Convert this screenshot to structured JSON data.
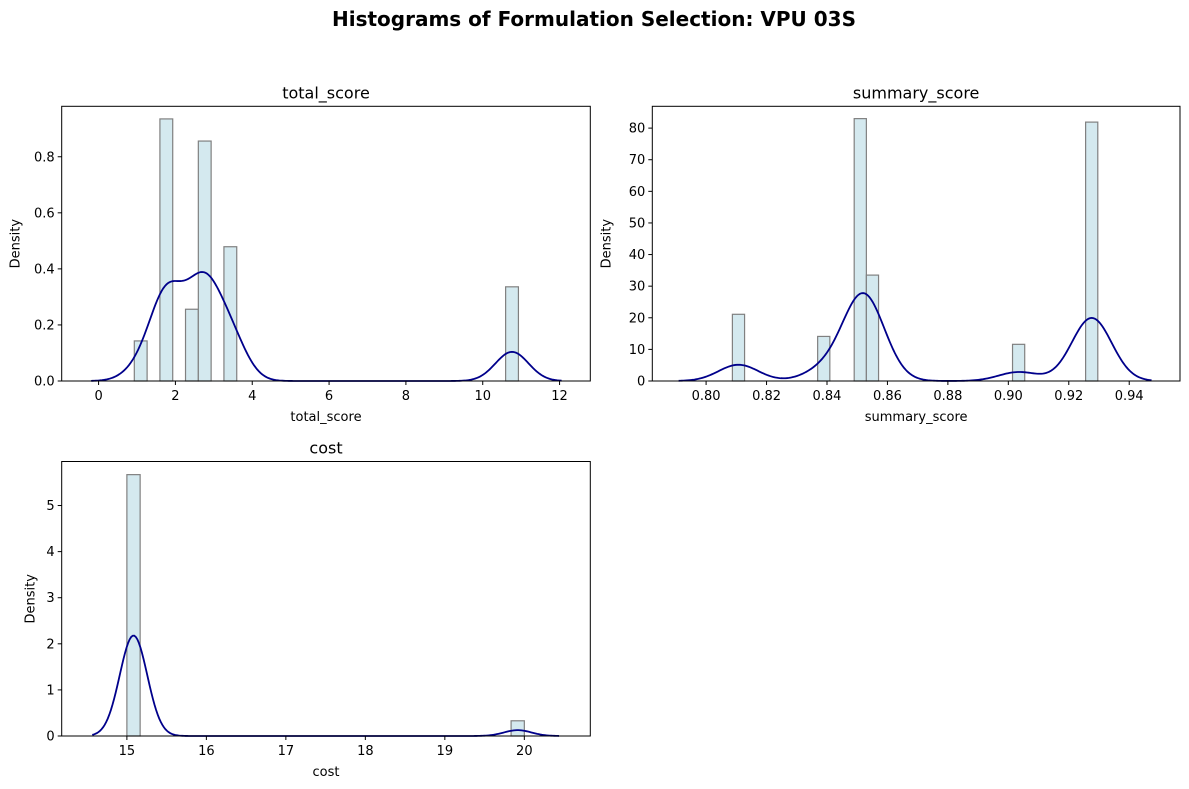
{
  "colors": {
    "bar_fill": "#d4e9ef",
    "bar_edge": "#808080",
    "kde": "#00008b"
  },
  "chart_data": {
    "title": "Histograms of Formulation Selection: VPU 03S",
    "panels": [
      {
        "type": "bar",
        "subtype": "histogram+kde",
        "title": "total_score",
        "xlabel": "total_score",
        "ylabel": "Density",
        "xlim": [
          -0.96,
          12.8
        ],
        "ylim": [
          0,
          0.98
        ],
        "xticks": [
          0,
          2,
          4,
          6,
          8,
          10,
          12
        ],
        "xtick_labels": [
          "0",
          "2",
          "4",
          "6",
          "8",
          "10",
          "12"
        ],
        "yticks": [
          0.0,
          0.2,
          0.4,
          0.6,
          0.8
        ],
        "ytick_labels": [
          "0.0",
          "0.2",
          "0.4",
          "0.6",
          "0.8"
        ],
        "bins": {
          "start": 0.93,
          "width": 0.3333,
          "count": 30
        },
        "bars": [
          {
            "bin": 0,
            "density": 0.143
          },
          {
            "bin": 2,
            "density": 0.935
          },
          {
            "bin": 4,
            "density": 0.256
          },
          {
            "bin": 5,
            "density": 0.856
          },
          {
            "bin": 7,
            "density": 0.479
          },
          {
            "bin": 29,
            "density": 0.336
          }
        ],
        "kde_bandwidth": 0.43,
        "kde_peaks": [
          {
            "x": 1.8,
            "y": 0.36
          },
          {
            "x": 2.6,
            "y": 0.41
          },
          {
            "x": 10.9,
            "y": 0.11
          }
        ],
        "grid": false
      },
      {
        "type": "bar",
        "subtype": "histogram+kde",
        "title": "summary_score",
        "xlabel": "summary_score",
        "ylabel": "Density",
        "xlim": [
          0.7822,
          0.9568
        ],
        "ylim": [
          0,
          86.9
        ],
        "xticks": [
          0.8,
          0.82,
          0.84,
          0.86,
          0.88,
          0.9,
          0.92,
          0.94
        ],
        "xtick_labels": [
          "0.80",
          "0.82",
          "0.84",
          "0.86",
          "0.88",
          "0.90",
          "0.92",
          "0.94"
        ],
        "yticks": [
          0,
          10,
          20,
          30,
          40,
          50,
          60,
          70,
          80
        ],
        "ytick_labels": [
          "0",
          "10",
          "20",
          "30",
          "40",
          "50",
          "60",
          "70",
          "80"
        ],
        "bins": {
          "start": 0.8087,
          "width": 0.00403,
          "count": 30
        },
        "bars": [
          {
            "bin": 0,
            "density": 21.1
          },
          {
            "bin": 7,
            "density": 14.1
          },
          {
            "bin": 10,
            "density": 83.0
          },
          {
            "bin": 11,
            "density": 33.5
          },
          {
            "bin": 23,
            "density": 11.6
          },
          {
            "bin": 29,
            "density": 81.9
          }
        ],
        "kde_bandwidth": 0.0066,
        "kde_peaks": [
          {
            "x": 0.808,
            "y": 5.7
          },
          {
            "x": 0.852,
            "y": 29.3
          },
          {
            "x": 0.905,
            "y": 3.0
          },
          {
            "x": 0.93,
            "y": 21.7
          }
        ],
        "grid": false
      },
      {
        "type": "bar",
        "subtype": "histogram+kde",
        "title": "cost",
        "xlabel": "cost",
        "ylabel": "Density",
        "xlim": [
          14.18,
          20.83
        ],
        "ylim": [
          0,
          5.955
        ],
        "xticks": [
          15,
          16,
          17,
          18,
          19,
          20
        ],
        "xtick_labels": [
          "15",
          "16",
          "17",
          "18",
          "19",
          "20"
        ],
        "yticks": [
          0,
          1,
          2,
          3,
          4,
          5
        ],
        "ytick_labels": [
          "0",
          "1",
          "2",
          "3",
          "4",
          "5"
        ],
        "bins": {
          "start": 15.0,
          "width": 0.16667,
          "count": 30
        },
        "bars": [
          {
            "bin": 0,
            "density": 5.67
          },
          {
            "bin": 29,
            "density": 0.33
          }
        ],
        "kde_bandwidth": 0.173,
        "kde_peaks": [
          {
            "x": 15.0,
            "y": 2.19
          },
          {
            "x": 20.0,
            "y": 0.13
          }
        ],
        "grid": false
      }
    ]
  }
}
